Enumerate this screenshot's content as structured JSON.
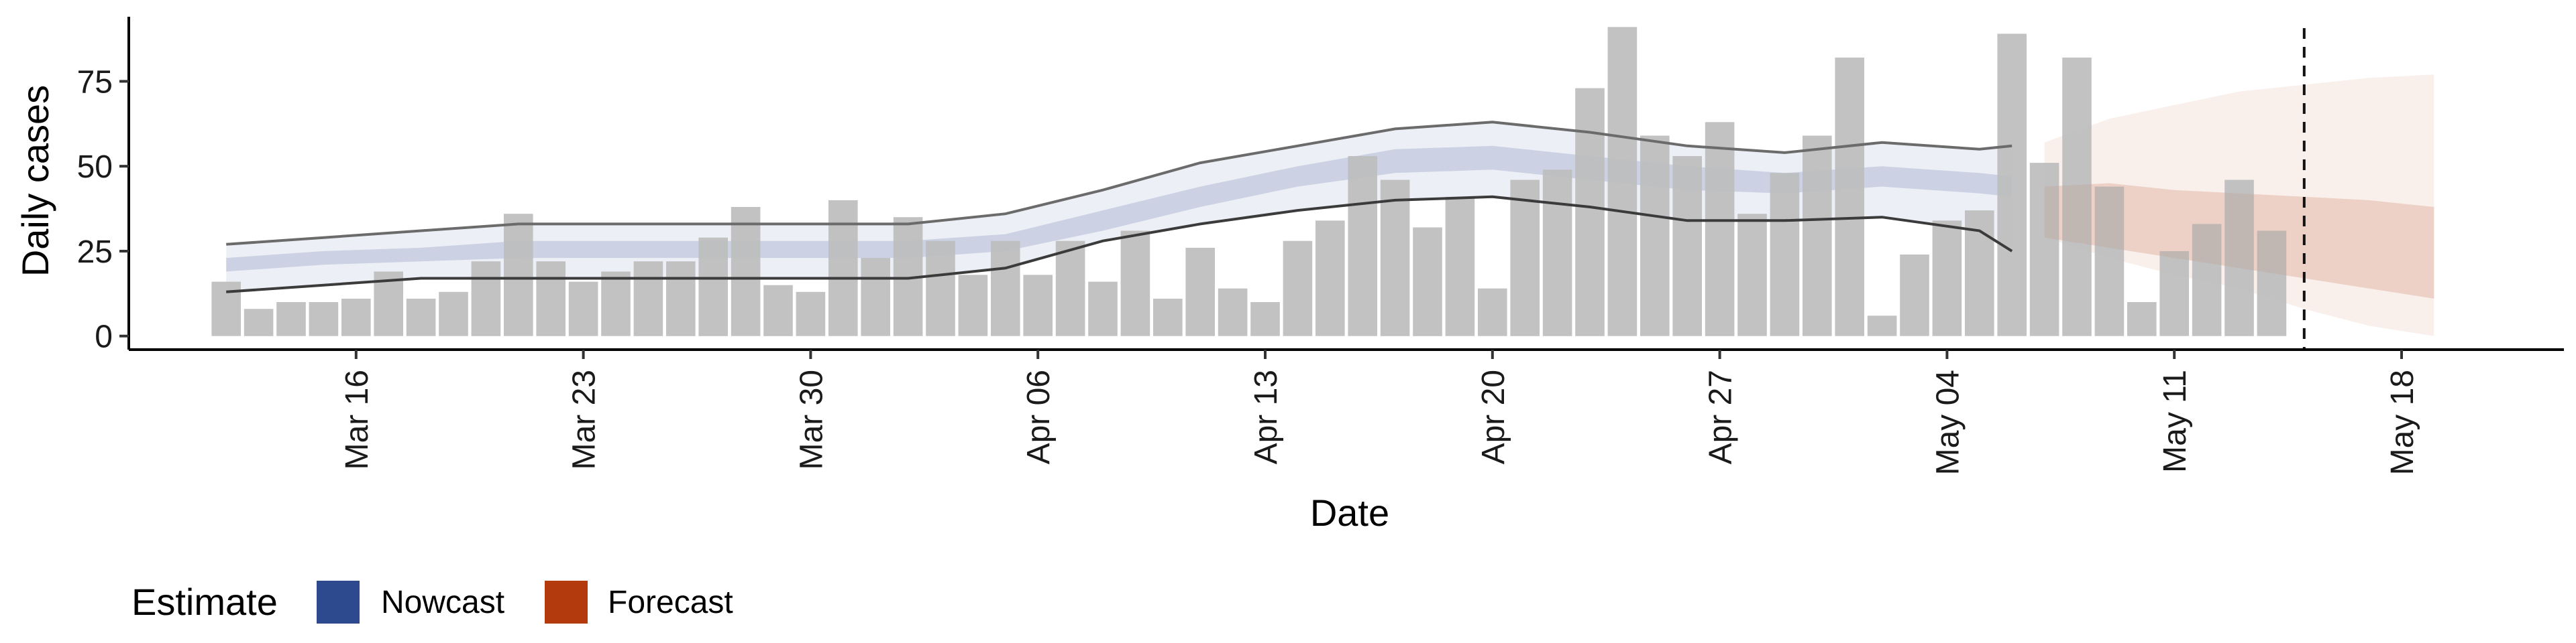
{
  "chart_data": {
    "type": "bar",
    "xlabel": "Date",
    "ylabel": "Daily cases",
    "ylim": [
      -4,
      95
    ],
    "yticks": [
      0,
      25,
      50,
      75
    ],
    "x_tick_labels": [
      "Mar 16",
      "Mar 23",
      "Mar 30",
      "Apr 06",
      "Apr 13",
      "Apr 20",
      "Apr 27",
      "May 04",
      "May 11",
      "May 18"
    ],
    "x_tick_dates": [
      "2020-03-16",
      "2020-03-23",
      "2020-03-30",
      "2020-04-06",
      "2020-04-13",
      "2020-04-20",
      "2020-04-27",
      "2020-05-04",
      "2020-05-11",
      "2020-05-18"
    ],
    "xlim": [
      "2020-03-09",
      "2020-05-23"
    ],
    "grid": false,
    "bars": {
      "color": "#bdbdbd",
      "dates": [
        "2020-03-12",
        "2020-03-13",
        "2020-03-14",
        "2020-03-15",
        "2020-03-16",
        "2020-03-17",
        "2020-03-18",
        "2020-03-19",
        "2020-03-20",
        "2020-03-21",
        "2020-03-22",
        "2020-03-23",
        "2020-03-24",
        "2020-03-25",
        "2020-03-26",
        "2020-03-27",
        "2020-03-28",
        "2020-03-29",
        "2020-03-30",
        "2020-03-31",
        "2020-04-01",
        "2020-04-02",
        "2020-04-03",
        "2020-04-04",
        "2020-04-05",
        "2020-04-06",
        "2020-04-07",
        "2020-04-08",
        "2020-04-09",
        "2020-04-10",
        "2020-04-11",
        "2020-04-12",
        "2020-04-13",
        "2020-04-14",
        "2020-04-15",
        "2020-04-16",
        "2020-04-17",
        "2020-04-18",
        "2020-04-19",
        "2020-04-20",
        "2020-04-21",
        "2020-04-22",
        "2020-04-23",
        "2020-04-24",
        "2020-04-25",
        "2020-04-26",
        "2020-04-27",
        "2020-04-28",
        "2020-04-29",
        "2020-04-30",
        "2020-05-01",
        "2020-05-02",
        "2020-05-03",
        "2020-05-04",
        "2020-05-05",
        "2020-05-06",
        "2020-05-07",
        "2020-05-08",
        "2020-05-09",
        "2020-05-10",
        "2020-05-11",
        "2020-05-12",
        "2020-05-13",
        "2020-05-14",
        "2020-05-15"
      ],
      "values": [
        16,
        8,
        10,
        10,
        11,
        19,
        11,
        13,
        22,
        36,
        22,
        16,
        19,
        22,
        22,
        29,
        38,
        15,
        13,
        40,
        23,
        35,
        28,
        18,
        28,
        18,
        28,
        16,
        31,
        11,
        26,
        14,
        10,
        28,
        34,
        53,
        46,
        32,
        41,
        14,
        46,
        49,
        73,
        91,
        59,
        53,
        63,
        36,
        48,
        59,
        82,
        6,
        24,
        34,
        37,
        89,
        51,
        82,
        44,
        10,
        25,
        33,
        46,
        31,
        0
      ]
    },
    "nowcast": {
      "name": "Nowcast",
      "color": "#2e4a8e",
      "dates": [
        "2020-03-12",
        "2020-03-15",
        "2020-03-18",
        "2020-03-21",
        "2020-03-24",
        "2020-03-27",
        "2020-03-30",
        "2020-04-02",
        "2020-04-05",
        "2020-04-08",
        "2020-04-11",
        "2020-04-14",
        "2020-04-17",
        "2020-04-20",
        "2020-04-23",
        "2020-04-26",
        "2020-04-29",
        "2020-05-02",
        "2020-05-05",
        "2020-05-06"
      ],
      "outer_upper": [
        27,
        29,
        31,
        33,
        33,
        33,
        33,
        33,
        36,
        43,
        51,
        56,
        61,
        63,
        60,
        56,
        54,
        57,
        55,
        56
      ],
      "outer_lower": [
        13,
        15,
        17,
        17,
        17,
        17,
        17,
        17,
        20,
        28,
        33,
        37,
        40,
        41,
        38,
        34,
        34,
        35,
        31,
        25
      ],
      "inner_upper": [
        23,
        25,
        26,
        28,
        28,
        28,
        28,
        28,
        30,
        37,
        44,
        50,
        55,
        56,
        53,
        50,
        48,
        50,
        48,
        47
      ],
      "inner_lower": [
        19,
        21,
        22,
        23,
        23,
        23,
        23,
        23,
        25,
        31,
        38,
        44,
        48,
        49,
        46,
        43,
        42,
        44,
        42,
        41
      ]
    },
    "forecast": {
      "name": "Forecast",
      "color": "#b33a0c",
      "dates": [
        "2020-05-07",
        "2020-05-09",
        "2020-05-11",
        "2020-05-13",
        "2020-05-15",
        "2020-05-17",
        "2020-05-19"
      ],
      "outer_upper": [
        57,
        64,
        68,
        72,
        74,
        76,
        77
      ],
      "outer_lower": [
        29,
        23,
        18,
        14,
        8,
        3,
        0
      ],
      "inner_upper": [
        44,
        45,
        43,
        42,
        41,
        40,
        38
      ],
      "inner_lower": [
        29,
        26,
        23,
        20,
        17,
        14,
        11
      ]
    },
    "vline": {
      "date": "2020-05-15",
      "style": "dashed"
    },
    "legend": {
      "title": "Estimate",
      "position": "bottom-left",
      "items": [
        {
          "label": "Nowcast",
          "color": "#2e4a8e"
        },
        {
          "label": "Forecast",
          "color": "#b33a0c"
        }
      ]
    }
  }
}
